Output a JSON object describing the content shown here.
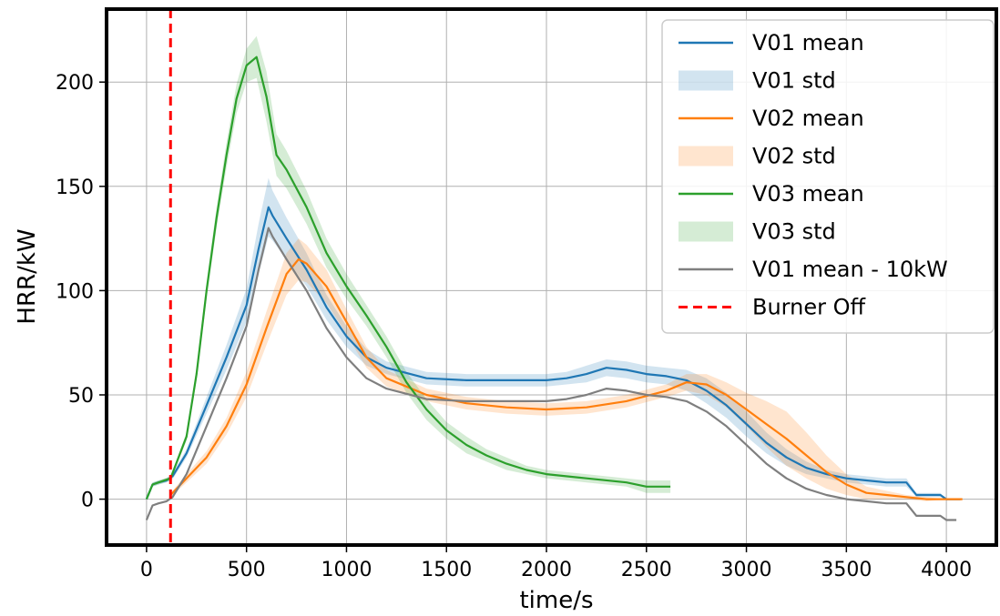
{
  "chart_data": {
    "type": "line",
    "title": "",
    "xlabel": "time/s",
    "ylabel": "HRR/kW",
    "xlim": [
      -200,
      4250
    ],
    "ylim": [
      -22,
      235
    ],
    "xticks": [
      0,
      500,
      1000,
      1500,
      2000,
      2500,
      3000,
      3500,
      4000
    ],
    "yticks": [
      0,
      50,
      100,
      150,
      200
    ],
    "grid": true,
    "legend_position": "top-right",
    "burner_off": {
      "name": "Burner Off",
      "x": 120,
      "color": "#ff0000",
      "style": "dashed"
    },
    "series": [
      {
        "name": "V01 mean",
        "std_name": "V01 std",
        "color": "#1f77b4",
        "x": [
          0,
          30,
          60,
          100,
          130,
          200,
          300,
          400,
          500,
          560,
          610,
          630,
          700,
          800,
          900,
          1000,
          1100,
          1200,
          1400,
          1600,
          1800,
          2000,
          2100,
          2200,
          2300,
          2400,
          2500,
          2600,
          2700,
          2800,
          2900,
          3000,
          3100,
          3200,
          3300,
          3400,
          3500,
          3600,
          3700,
          3800,
          3850,
          3900,
          3970,
          4000,
          4070
        ],
        "mean": [
          0,
          7,
          8,
          9,
          11,
          22,
          45,
          68,
          93,
          120,
          140,
          136,
          125,
          110,
          92,
          78,
          68,
          63,
          58,
          57,
          57,
          57,
          58,
          60,
          63,
          62,
          60,
          59,
          57,
          52,
          45,
          36,
          27,
          20,
          15,
          12,
          10,
          9,
          8,
          8,
          2,
          2,
          2,
          0,
          0
        ],
        "std": [
          0,
          1,
          1,
          1,
          1.5,
          2,
          4,
          6,
          8,
          12,
          14,
          12,
          10,
          8,
          6,
          5,
          4,
          3,
          3,
          3,
          3,
          3,
          3,
          4,
          4,
          4,
          4,
          4,
          5,
          6,
          6,
          6,
          5,
          4,
          3,
          2,
          2,
          2,
          2,
          2,
          1,
          1,
          1,
          0,
          0
        ]
      },
      {
        "name": "V02 mean",
        "std_name": "V02 std",
        "color": "#ff7f0e",
        "x": [
          120,
          200,
          300,
          400,
          500,
          600,
          700,
          760,
          800,
          900,
          1000,
          1100,
          1200,
          1400,
          1600,
          1800,
          2000,
          2200,
          2400,
          2600,
          2700,
          2800,
          2900,
          3000,
          3100,
          3200,
          3300,
          3400,
          3500,
          3600,
          3700,
          3800,
          3900,
          4000,
          4080
        ],
        "mean": [
          2,
          10,
          20,
          35,
          55,
          82,
          108,
          115,
          113,
          102,
          85,
          68,
          58,
          50,
          46,
          44,
          43,
          44,
          47,
          52,
          56,
          55,
          50,
          43,
          36,
          29,
          21,
          13,
          7,
          3,
          2,
          1,
          0,
          0,
          0
        ],
        "std": [
          1,
          2,
          3,
          4,
          6,
          8,
          10,
          10,
          9,
          8,
          6,
          5,
          4,
          3,
          3,
          3,
          3,
          3,
          3,
          3,
          4,
          5,
          6,
          8,
          11,
          13,
          11,
          8,
          5,
          3,
          2,
          1,
          1,
          0,
          0
        ]
      },
      {
        "name": "V03 mean",
        "std_name": "V03 std",
        "color": "#2ca02c",
        "x": [
          0,
          30,
          60,
          120,
          200,
          250,
          300,
          350,
          400,
          450,
          500,
          550,
          600,
          650,
          700,
          800,
          900,
          1000,
          1100,
          1200,
          1300,
          1400,
          1500,
          1600,
          1700,
          1800,
          1900,
          2000,
          2200,
          2400,
          2500,
          2620
        ],
        "mean": [
          0,
          7,
          8,
          10,
          30,
          60,
          100,
          135,
          165,
          192,
          208,
          212,
          193,
          165,
          158,
          140,
          118,
          102,
          88,
          73,
          56,
          43,
          33,
          26,
          21,
          17,
          14,
          12,
          10,
          8,
          6,
          6
        ],
        "std": [
          0,
          1,
          1,
          1,
          2,
          3,
          4,
          5,
          6,
          7,
          8,
          10,
          12,
          10,
          9,
          8,
          7,
          6,
          5,
          5,
          5,
          5,
          4,
          4,
          3,
          3,
          2,
          2,
          2,
          2,
          3,
          3
        ]
      },
      {
        "name": "V01 mean - 10kW",
        "color": "#7f7f7f",
        "x": [
          0,
          30,
          60,
          100,
          130,
          200,
          300,
          400,
          500,
          560,
          610,
          630,
          700,
          800,
          900,
          1000,
          1100,
          1200,
          1400,
          1600,
          1800,
          2000,
          2100,
          2200,
          2300,
          2400,
          2500,
          2600,
          2700,
          2800,
          2900,
          3000,
          3100,
          3200,
          3300,
          3400,
          3500,
          3600,
          3700,
          3800,
          3850,
          3900,
          3970,
          4000,
          4050
        ],
        "mean": [
          -10,
          -3,
          -2,
          -1,
          1,
          12,
          35,
          58,
          83,
          110,
          130,
          126,
          115,
          100,
          82,
          68,
          58,
          53,
          48,
          47,
          47,
          47,
          48,
          50,
          53,
          52,
          50,
          49,
          47,
          42,
          35,
          26,
          17,
          10,
          5,
          2,
          0,
          -1,
          -2,
          -2,
          -8,
          -8,
          -8,
          -10,
          -10
        ]
      }
    ]
  }
}
